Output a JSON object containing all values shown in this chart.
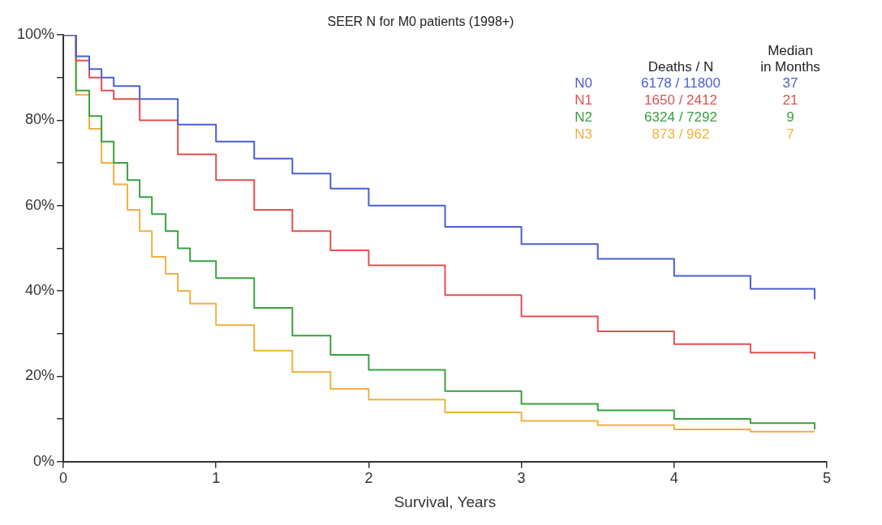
{
  "chart_data": {
    "type": "step",
    "title": "SEER N for M0 patients (1998+)",
    "xlabel": "Survival, Years",
    "xlim": [
      0,
      5
    ],
    "xticks": [
      0,
      1,
      2,
      3,
      4,
      5
    ],
    "ylim": [
      0,
      100
    ],
    "yticks": [
      {
        "value": 0,
        "label": "0%"
      },
      {
        "value": 10,
        "label": null
      },
      {
        "value": 20,
        "label": "20%"
      },
      {
        "value": 30,
        "label": null
      },
      {
        "value": 40,
        "label": "40%"
      },
      {
        "value": 50,
        "label": null
      },
      {
        "value": 60,
        "label": "60%"
      },
      {
        "value": 70,
        "label": null
      },
      {
        "value": 80,
        "label": "80%"
      },
      {
        "value": 90,
        "label": null
      },
      {
        "value": 100,
        "label": "100%"
      }
    ],
    "grid": false,
    "legend": "top right",
    "marker": "none",
    "series": [
      {
        "name": "N0",
        "color": "#4a5fd0",
        "x": [
          0,
          0.083,
          0.17,
          0.25,
          0.33,
          0.5,
          0.75,
          1,
          1.25,
          1.5,
          1.75,
          2,
          2.5,
          3,
          3.5,
          4,
          4.5,
          4.92
        ],
        "values": [
          100,
          95,
          92,
          90,
          88,
          85,
          79,
          75,
          71,
          67.5,
          64,
          60,
          55,
          51,
          47.5,
          43.5,
          40.5,
          38
        ]
      },
      {
        "name": "N1",
        "color": "#e05050",
        "x": [
          0,
          0.083,
          0.17,
          0.25,
          0.33,
          0.5,
          0.75,
          1,
          1.25,
          1.5,
          1.75,
          2,
          2.5,
          3,
          3.5,
          4,
          4.5,
          4.92
        ],
        "values": [
          100,
          94,
          90,
          87,
          85,
          80,
          72,
          66,
          59,
          54,
          49.5,
          46,
          39,
          34,
          30.5,
          27.5,
          25.5,
          24
        ]
      },
      {
        "name": "N2",
        "color": "#3aa040",
        "x": [
          0,
          0.083,
          0.17,
          0.25,
          0.33,
          0.42,
          0.5,
          0.58,
          0.67,
          0.75,
          0.83,
          1,
          1.25,
          1.5,
          1.75,
          2,
          2.5,
          3,
          3.5,
          4,
          4.5,
          4.92
        ],
        "values": [
          100,
          87,
          81,
          75,
          70,
          66,
          62,
          58,
          54,
          50,
          47,
          43,
          36,
          29.5,
          25,
          21.5,
          16.5,
          13.5,
          12,
          10,
          9,
          7.5
        ]
      },
      {
        "name": "N3",
        "color": "#f0b040",
        "x": [
          0,
          0.083,
          0.17,
          0.25,
          0.33,
          0.42,
          0.5,
          0.58,
          0.67,
          0.75,
          0.83,
          1,
          1.25,
          1.5,
          1.75,
          2,
          2.5,
          3,
          3.5,
          4,
          4.5,
          4.92
        ],
        "values": [
          100,
          86,
          78,
          70,
          65,
          59,
          54,
          48,
          44,
          40,
          37,
          32,
          26,
          21,
          17,
          14.5,
          11.5,
          9.5,
          8.5,
          7.5,
          7,
          7
        ]
      }
    ],
    "annotations": [
      "Deaths / N",
      "Median\nin Months",
      "6178 / 11800",
      "37",
      "1650 / 2412",
      "21",
      "6324 / 7292",
      "9",
      "873 / 962",
      "7"
    ]
  }
}
